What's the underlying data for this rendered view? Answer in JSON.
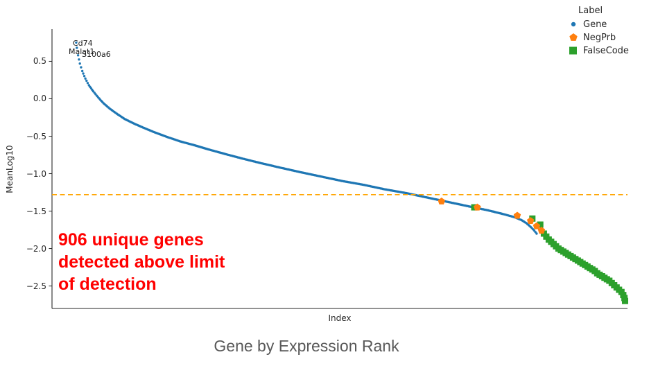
{
  "chart_data": {
    "type": "scatter",
    "title": "Gene by Expression Rank",
    "xlabel": "Index",
    "ylabel": "MeanLog10",
    "legend_title": "Label",
    "legend_position": "upper right",
    "grid": false,
    "xlim": [
      0,
      950
    ],
    "ylim": [
      -2.8,
      0.93
    ],
    "yticks": [
      {
        "v": 0.5,
        "label": "0.5"
      },
      {
        "v": 0.0,
        "label": "0.0"
      },
      {
        "v": -0.5,
        "label": "−0.5"
      },
      {
        "v": -1.0,
        "label": "−1.0"
      },
      {
        "v": -1.5,
        "label": "−1.5"
      },
      {
        "v": -2.0,
        "label": "−2.0"
      },
      {
        "v": -2.5,
        "label": "−2.5"
      }
    ],
    "threshold_line": {
      "y": -1.28,
      "color": "#FFA500",
      "style": "dashed"
    },
    "annotation": {
      "lines": [
        "906 unique genes",
        "detected above limit",
        "of detection"
      ],
      "color": "#ff0000"
    },
    "gene_labels": [
      {
        "text": "Cd74",
        "x": 46,
        "y": 0.74
      },
      {
        "text": "Malat1",
        "x": 39,
        "y": 0.62
      },
      {
        "text": "S100a6",
        "x": 61,
        "y": 0.585
      }
    ],
    "series": [
      {
        "name": "Gene",
        "marker": "dot",
        "color": "#1f77b4",
        "interpolated_curve": true,
        "points": [
          [
            40,
            0.75
          ],
          [
            41,
            0.68
          ],
          [
            43,
            0.58
          ],
          [
            46,
            0.47
          ],
          [
            50,
            0.37
          ],
          [
            55,
            0.27
          ],
          [
            61,
            0.18
          ],
          [
            68,
            0.1
          ],
          [
            76,
            0.02
          ],
          [
            85,
            -0.06
          ],
          [
            95,
            -0.13
          ],
          [
            107,
            -0.2
          ],
          [
            120,
            -0.27
          ],
          [
            135,
            -0.33
          ],
          [
            152,
            -0.39
          ],
          [
            170,
            -0.45
          ],
          [
            190,
            -0.51
          ],
          [
            212,
            -0.57
          ],
          [
            235,
            -0.62
          ],
          [
            260,
            -0.68
          ],
          [
            287,
            -0.74
          ],
          [
            315,
            -0.8
          ],
          [
            345,
            -0.86
          ],
          [
            377,
            -0.92
          ],
          [
            410,
            -0.98
          ],
          [
            445,
            -1.04
          ],
          [
            480,
            -1.1
          ],
          [
            515,
            -1.15
          ],
          [
            550,
            -1.21
          ],
          [
            585,
            -1.26
          ],
          [
            620,
            -1.32
          ],
          [
            655,
            -1.38
          ],
          [
            690,
            -1.44
          ],
          [
            720,
            -1.49
          ],
          [
            745,
            -1.54
          ],
          [
            763,
            -1.58
          ],
          [
            775,
            -1.62
          ],
          [
            783,
            -1.66
          ],
          [
            790,
            -1.71
          ],
          [
            796,
            -1.76
          ],
          [
            800,
            -1.8
          ]
        ]
      },
      {
        "name": "NegPrb",
        "marker": "pentagon",
        "color": "#ff7f0e",
        "points": [
          [
            643,
            -1.37
          ],
          [
            702,
            -1.45
          ],
          [
            768,
            -1.56
          ],
          [
            790,
            -1.63
          ],
          [
            800,
            -1.7
          ],
          [
            808,
            -1.76
          ]
        ]
      },
      {
        "name": "FalseCode",
        "marker": "square",
        "color": "#2ca02c",
        "points": [
          [
            697,
            -1.45
          ],
          [
            793,
            -1.6
          ],
          [
            806,
            -1.68
          ],
          [
            812,
            -1.8
          ],
          [
            816,
            -1.84
          ],
          [
            820,
            -1.88
          ],
          [
            824,
            -1.91
          ],
          [
            828,
            -1.94
          ],
          [
            832,
            -1.97
          ],
          [
            836,
            -2.0
          ],
          [
            840,
            -2.02
          ],
          [
            844,
            -2.04
          ],
          [
            848,
            -2.06
          ],
          [
            852,
            -2.08
          ],
          [
            856,
            -2.1
          ],
          [
            860,
            -2.12
          ],
          [
            864,
            -2.14
          ],
          [
            868,
            -2.16
          ],
          [
            872,
            -2.18
          ],
          [
            876,
            -2.2
          ],
          [
            880,
            -2.22
          ],
          [
            884,
            -2.24
          ],
          [
            888,
            -2.26
          ],
          [
            892,
            -2.28
          ],
          [
            896,
            -2.3
          ],
          [
            900,
            -2.33
          ],
          [
            904,
            -2.35
          ],
          [
            908,
            -2.37
          ],
          [
            912,
            -2.39
          ],
          [
            916,
            -2.41
          ],
          [
            920,
            -2.43
          ],
          [
            924,
            -2.46
          ],
          [
            928,
            -2.49
          ],
          [
            932,
            -2.52
          ],
          [
            936,
            -2.55
          ],
          [
            940,
            -2.58
          ],
          [
            943,
            -2.62
          ],
          [
            945,
            -2.66
          ],
          [
            946,
            -2.7
          ]
        ]
      }
    ]
  }
}
